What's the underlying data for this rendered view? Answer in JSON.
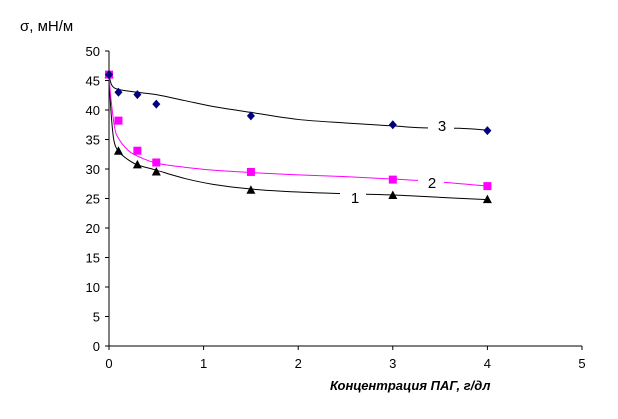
{
  "chart_data": {
    "type": "scatter",
    "title": "",
    "xlabel": "Концентрация ПАГ, г/дл",
    "ylabel": "σ, мН/м",
    "xlim": [
      0,
      5
    ],
    "ylim": [
      0,
      50
    ],
    "x_ticks": [
      "0",
      "1",
      "2",
      "3",
      "4",
      "5"
    ],
    "y_ticks": [
      "0",
      "5",
      "10",
      "15",
      "20",
      "25",
      "30",
      "35",
      "40",
      "45",
      "50"
    ],
    "grid": false,
    "legend": "none",
    "series": [
      {
        "label": "1",
        "color": "#000000",
        "marker": "triangle",
        "x": [
          0,
          0.1,
          0.3,
          0.5,
          1.5,
          3,
          4
        ],
        "y": [
          46,
          33,
          30.7,
          29.5,
          26.4,
          25.5,
          24.8
        ],
        "trend": [
          [
            0,
            46
          ],
          [
            0.02,
            40
          ],
          [
            0.05,
            35
          ],
          [
            0.1,
            33
          ],
          [
            0.2,
            31.6
          ],
          [
            0.3,
            30.7
          ],
          [
            0.5,
            29.8
          ],
          [
            0.8,
            28.4
          ],
          [
            1.1,
            27.4
          ],
          [
            1.5,
            26.6
          ],
          [
            2,
            26.1
          ],
          [
            2.5,
            25.8
          ],
          [
            3,
            25.6
          ],
          [
            3.5,
            25.2
          ],
          [
            4,
            24.8
          ]
        ]
      },
      {
        "label": "2",
        "color": "#ff00ff",
        "marker": "square",
        "x": [
          0,
          0.1,
          0.3,
          0.5,
          1.5,
          3,
          4
        ],
        "y": [
          46,
          38.2,
          33.1,
          31.1,
          29.5,
          28.2,
          27.1
        ],
        "trend": [
          [
            0,
            46
          ],
          [
            0.02,
            42
          ],
          [
            0.06,
            37
          ],
          [
            0.1,
            35.2
          ],
          [
            0.2,
            33.2
          ],
          [
            0.3,
            32.2
          ],
          [
            0.5,
            31
          ],
          [
            0.8,
            30.3
          ],
          [
            1.1,
            29.8
          ],
          [
            1.5,
            29.4
          ],
          [
            2,
            29
          ],
          [
            2.5,
            28.7
          ],
          [
            3,
            28.3
          ],
          [
            3.5,
            27.8
          ],
          [
            4,
            27.1
          ]
        ]
      },
      {
        "label": "3",
        "color": "#000080",
        "marker": "diamond",
        "x": [
          0,
          0.1,
          0.3,
          0.5,
          1.5,
          3,
          4
        ],
        "y": [
          46,
          43,
          42.6,
          41,
          39,
          37.5,
          36.5
        ],
        "trend": [
          [
            0,
            46
          ],
          [
            0.03,
            44.2
          ],
          [
            0.1,
            43.5
          ],
          [
            0.3,
            43
          ],
          [
            0.5,
            42.6
          ],
          [
            0.8,
            41.6
          ],
          [
            1.1,
            40.6
          ],
          [
            1.5,
            39.6
          ],
          [
            2,
            38.4
          ],
          [
            2.5,
            37.8
          ],
          [
            3,
            37.3
          ],
          [
            3.3,
            37
          ],
          [
            3.7,
            36.9
          ],
          [
            4,
            36.6
          ]
        ]
      }
    ]
  }
}
